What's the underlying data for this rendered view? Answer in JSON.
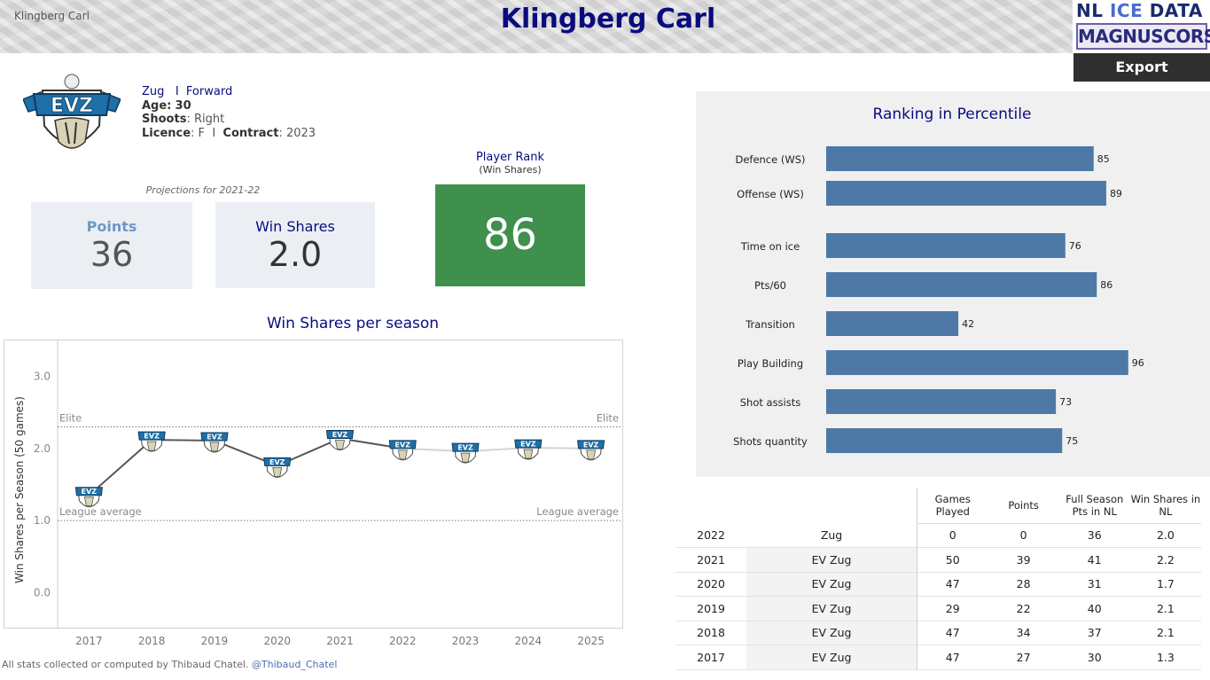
{
  "header": {
    "player_name_small": "Klingberg Carl",
    "player_name": "Klingberg Carl",
    "brand_line1_a": "NL ",
    "brand_line1_b": "ICE",
    "brand_line1_c": " DATA",
    "brand_line2": "MAGNUSCORSI",
    "export_label": "Export"
  },
  "profile": {
    "team": "Zug",
    "separator": "I",
    "position": "Forward",
    "age_label": "Age:",
    "age": "30",
    "shoots_label": "Shoots",
    "shoots": ": Right",
    "licence_label": "Licence",
    "licence": ": F",
    "contract_label": "Contract",
    "contract": ": 2023",
    "logo_text": "EVZ"
  },
  "projections": {
    "label": "Projections for 2021-22",
    "points_label": "Points",
    "points_value": "36",
    "ws_label": "Win Shares",
    "ws_value": "2.0"
  },
  "rank": {
    "title": "Player Rank",
    "subtitle": "(Win Shares)",
    "value": "86",
    "color": "#3e904c"
  },
  "chart_data": [
    {
      "type": "line",
      "title": "Win Shares per season",
      "ylabel": "Win Shares per Season (50 games)",
      "xlabel": "",
      "x": [
        "2017",
        "2018",
        "2019",
        "2020",
        "2021",
        "2022",
        "2023",
        "2024",
        "2025"
      ],
      "series": [
        {
          "values": [
            1.35,
            2.12,
            2.11,
            1.76,
            2.14,
            2.0,
            1.96,
            2.01,
            2.0
          ]
        }
      ],
      "solid_until_index": 5,
      "ylim": [
        -0.5,
        3.5
      ],
      "yticks": [
        "0.0",
        "1.0",
        "2.0",
        "3.0"
      ],
      "reference_lines": [
        {
          "label": "Elite",
          "value": 2.3
        },
        {
          "label": "League average",
          "value": 1.0
        }
      ],
      "marker": "EVZ",
      "line_color": "#555555",
      "projected_color": "#d3d3d3"
    },
    {
      "type": "bar",
      "orientation": "horizontal",
      "title": "Ranking in Percentile",
      "categories": [
        "Defence (WS)",
        "Offense (WS)",
        "Time on ice",
        "Pts/60",
        "Transition",
        "Play Building",
        "Shot assists",
        "Shots quantity"
      ],
      "values": [
        85,
        89,
        76,
        86,
        42,
        96,
        73,
        75
      ],
      "xlim": [
        0,
        100
      ],
      "bar_color": "#4e79a7"
    }
  ],
  "table": {
    "headers": [
      "",
      "",
      "Games Played",
      "Points",
      "Full Season Pts in NL",
      "Win Shares in NL"
    ],
    "rows": [
      [
        "2022",
        "Zug",
        "0",
        "0",
        "36",
        "2.0"
      ],
      [
        "2021",
        "EV Zug",
        "50",
        "39",
        "41",
        "2.2"
      ],
      [
        "2020",
        "EV Zug",
        "47",
        "28",
        "31",
        "1.7"
      ],
      [
        "2019",
        "EV Zug",
        "29",
        "22",
        "40",
        "2.1"
      ],
      [
        "2018",
        "EV Zug",
        "47",
        "34",
        "37",
        "2.1"
      ],
      [
        "2017",
        "EV Zug",
        "47",
        "27",
        "30",
        "1.3"
      ]
    ]
  },
  "footer": {
    "text": "All stats collected or computed by Thibaud Chatel.",
    "handle": "@Thibaud_Chatel"
  }
}
